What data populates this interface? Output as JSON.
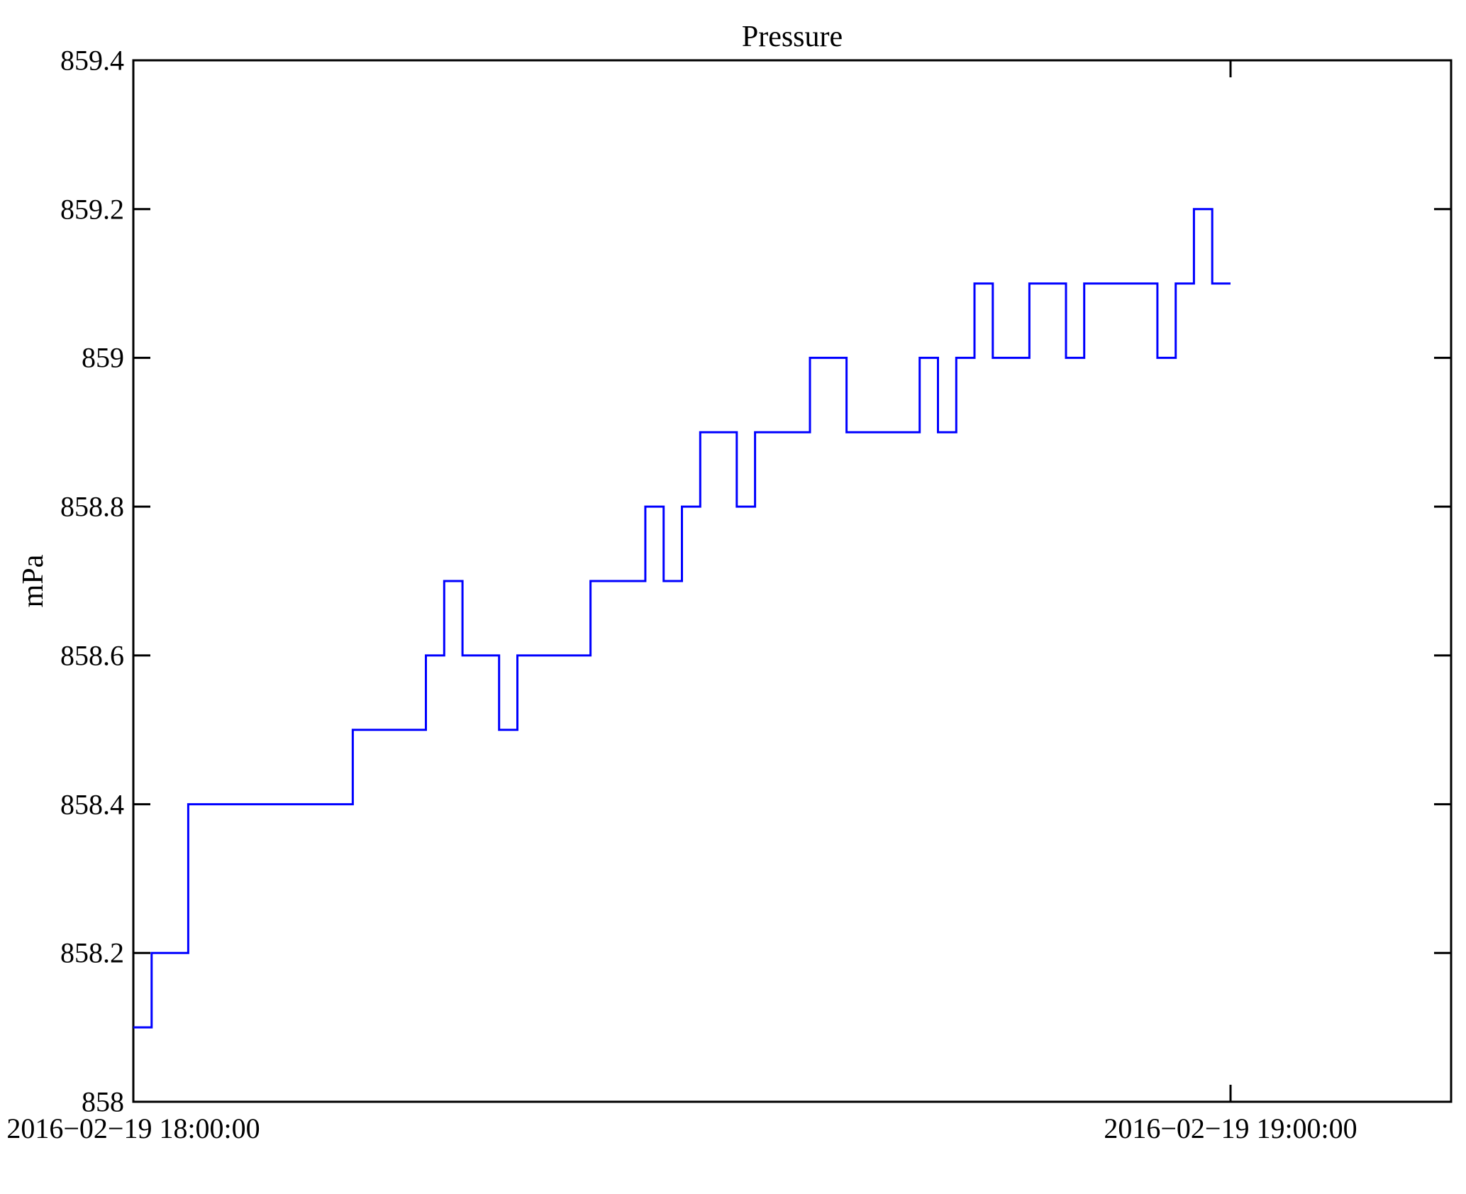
{
  "chart_data": {
    "type": "line",
    "title": "Pressure",
    "xlabel": "",
    "ylabel": "mPa",
    "ylim": [
      858,
      859.4
    ],
    "yticks": [
      858,
      858.2,
      858.4,
      858.6,
      858.8,
      859,
      859.2,
      859.4
    ],
    "ytick_labels": [
      "858",
      "858.2",
      "858.4",
      "858.6",
      "858.8",
      "859",
      "859.2",
      "859.4"
    ],
    "xtick_minutes": [
      0,
      60
    ],
    "xtick_labels": [
      "2016−02−19 18:00:00",
      "2016−02−19 19:00:00"
    ],
    "xlim_minutes": [
      0,
      72.1
    ],
    "grid": false,
    "legend": null,
    "line_color": "#0000ff",
    "axis_color": "#000000",
    "series": [
      {
        "name": "Pressure",
        "style": "step-post",
        "x_minutes_after_18_00": [
          0,
          1,
          3,
          12,
          16,
          17,
          18,
          20,
          21,
          25,
          28,
          29,
          30,
          31,
          33,
          34,
          37,
          39,
          43,
          44,
          45,
          46,
          47,
          49,
          51,
          52,
          56,
          57,
          58,
          59,
          60
        ],
        "values_mPa": [
          858.1,
          858.2,
          858.4,
          858.5,
          858.6,
          858.7,
          858.6,
          858.5,
          858.6,
          858.7,
          858.8,
          858.7,
          858.8,
          858.9,
          858.8,
          858.9,
          859.0,
          858.9,
          859.0,
          858.9,
          859.0,
          859.1,
          859.0,
          859.1,
          859.0,
          859.1,
          859.0,
          859.1,
          859.2,
          859.1,
          859.1
        ]
      }
    ]
  }
}
